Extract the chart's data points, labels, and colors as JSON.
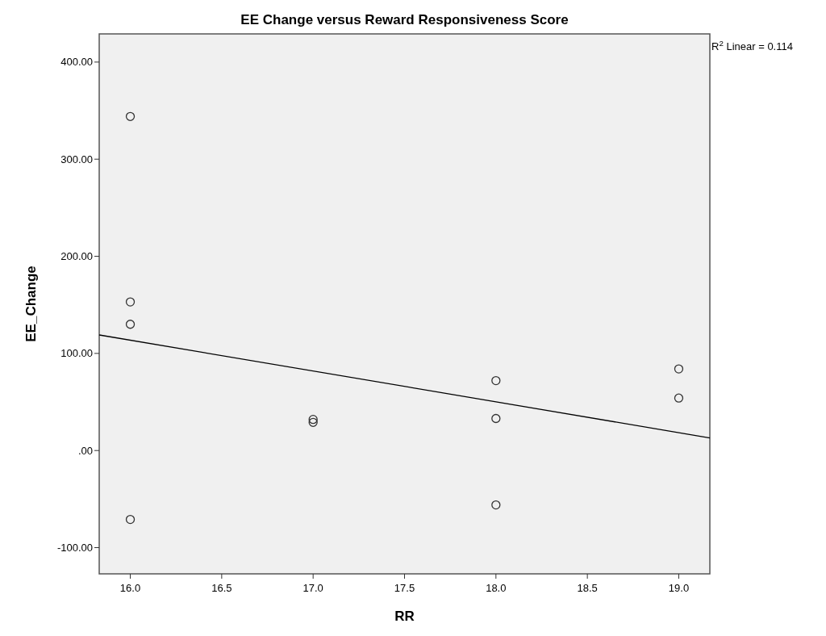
{
  "chart_data": {
    "type": "scatter",
    "title": "EE Change versus Reward Responsiveness Score",
    "xlabel": "RR",
    "ylabel": "EE_Change",
    "annotations": [
      "R$^{2}$ Linear = 0.114"
    ],
    "x": [
      16,
      16,
      16,
      16,
      17,
      17,
      18,
      18,
      18,
      19,
      19
    ],
    "series": [
      {
        "color": "#333333",
        "marker": "circle",
        "values": [
          344,
          153,
          130,
          -71,
          32,
          29,
          72,
          33,
          -56,
          84,
          54
        ]
      },
      {
        "type": "line",
        "color": "#000000",
        "x": [
          15.83,
          19.17
        ],
        "values": [
          119,
          13
        ],
        "marker": "none"
      }
    ],
    "xlim": [
      15.83,
      19.17
    ],
    "ylim": [
      -127,
      429
    ],
    "xticks": [
      {
        "value": 16,
        "label": "16.0"
      },
      {
        "value": 16.5,
        "label": "16.5"
      },
      {
        "value": 17,
        "label": "17.0"
      },
      {
        "value": 17.5,
        "label": "17.5"
      },
      {
        "value": 18,
        "label": "18.0"
      },
      {
        "value": 18.5,
        "label": "18.5"
      },
      {
        "value": 19,
        "label": "19.0"
      }
    ],
    "yticks": [
      {
        "value": -100,
        "label": "-100.00"
      },
      {
        "value": 0,
        "label": ".00"
      },
      {
        "value": 100,
        "label": "100.00"
      },
      {
        "value": 200,
        "label": "200.00"
      },
      {
        "value": 300,
        "label": "300.00"
      },
      {
        "value": 400,
        "label": "400.00"
      }
    ],
    "grid": false
  }
}
